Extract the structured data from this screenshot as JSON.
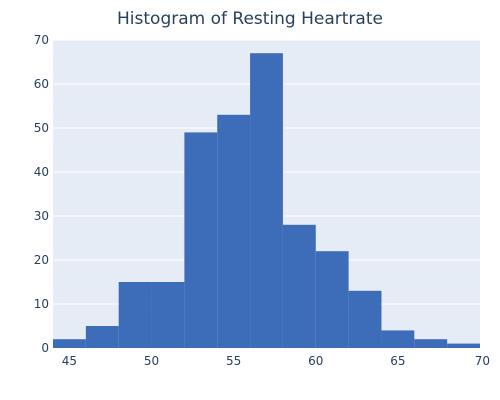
{
  "chart_data": {
    "type": "bar",
    "title": "Histogram of Resting Heartrate",
    "xlabel": "",
    "ylabel": "",
    "bin_width": 2,
    "xlim": [
      44,
      70
    ],
    "ylim": [
      0,
      70
    ],
    "x_ticks": [
      45,
      50,
      55,
      60,
      65,
      70
    ],
    "y_ticks": [
      0,
      10,
      20,
      30,
      40,
      50,
      60,
      70
    ],
    "bins": [
      {
        "start": 44,
        "end": 46,
        "count": 2
      },
      {
        "start": 46,
        "end": 48,
        "count": 5
      },
      {
        "start": 48,
        "end": 50,
        "count": 15
      },
      {
        "start": 50,
        "end": 52,
        "count": 15
      },
      {
        "start": 52,
        "end": 54,
        "count": 49
      },
      {
        "start": 54,
        "end": 56,
        "count": 53
      },
      {
        "start": 56,
        "end": 58,
        "count": 67
      },
      {
        "start": 58,
        "end": 60,
        "count": 28
      },
      {
        "start": 60,
        "end": 62,
        "count": 22
      },
      {
        "start": 62,
        "end": 64,
        "count": 13
      },
      {
        "start": 64,
        "end": 66,
        "count": 4
      },
      {
        "start": 66,
        "end": 68,
        "count": 2
      },
      {
        "start": 68,
        "end": 70,
        "count": 1
      }
    ],
    "colors": {
      "bar": "#3d6db9",
      "plot_bg": "#e5ecf6",
      "text": "#2a3f5f",
      "grid": "#ffffff"
    },
    "grid": true
  }
}
